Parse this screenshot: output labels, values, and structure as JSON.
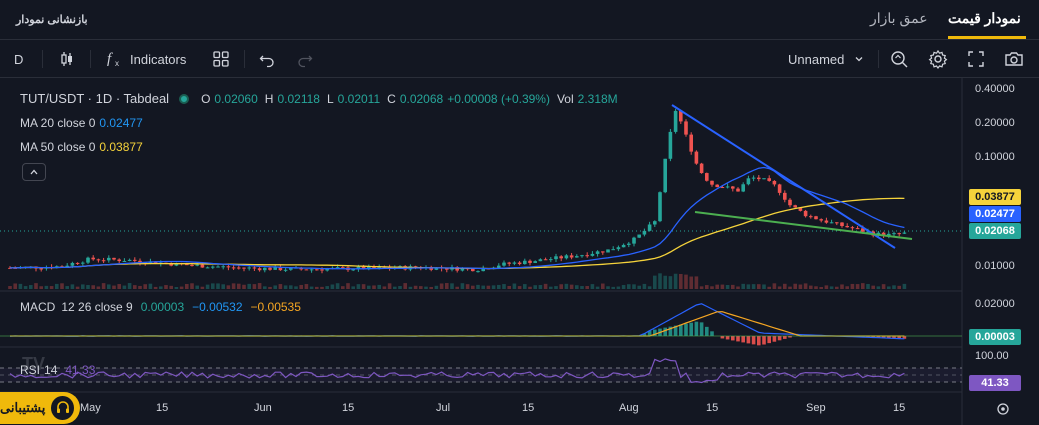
{
  "tabs": {
    "price_chart": "نمودار قیمت",
    "market_depth": "عمق بازار",
    "reset_chart": "بازنشانی نمودار"
  },
  "toolbar": {
    "interval": "D",
    "indicators_label": "Indicators",
    "layout_name": "Unnamed"
  },
  "legend": {
    "symbol": "TUT/USDT · 1D · Tabdeal",
    "open_label": "O",
    "open": "0.02060",
    "high_label": "H",
    "high": "0.02118",
    "low_label": "L",
    "low": "0.02011",
    "close_label": "C",
    "close": "0.02068",
    "change": "+0.00008 (+0.39%)",
    "vol_label": "Vol",
    "vol": "2.318M",
    "ma20_label": "MA 20 close 0",
    "ma20_value": "0.02477",
    "ma50_label": "MA 50 close 0",
    "ma50_value": "0.03877"
  },
  "macd": {
    "label": "MACD",
    "params": "12 26 close 9",
    "hist": "0.00003",
    "macd": "−0.00532",
    "signal": "−0.00535"
  },
  "rsi": {
    "label": "RSI",
    "params": "14",
    "value": "41.33"
  },
  "price_axis": {
    "ticks": [
      "0.40000",
      "0.20000",
      "0.10000",
      "0.01000"
    ],
    "badges": {
      "ma50": "0.03877",
      "ma20": "0.02477",
      "last": "0.02068"
    }
  },
  "macd_axis": {
    "ticks": [
      "0.02000"
    ],
    "badge": "0.00003"
  },
  "rsi_axis": {
    "ticks": [
      "100.00"
    ],
    "badge": "41.33"
  },
  "time_axis": {
    "labels": [
      "May",
      "15",
      "Jun",
      "15",
      "Jul",
      "15",
      "Aug",
      "15",
      "Sep",
      "15"
    ]
  },
  "support": {
    "label": "پشتیبانی"
  },
  "colors": {
    "background": "#131722",
    "up": "#26a69a",
    "down": "#ef5350",
    "ma20": "#2962ff",
    "ma50": "#f5d33b",
    "accent": "#f0b90b",
    "rsi": "#7e57c2"
  },
  "chart_data": {
    "type": "candlestick",
    "title": "TUT/USDT · 1D · Tabdeal",
    "yscale": "log",
    "ylim": [
      0.0075,
      0.42
    ],
    "x_labels": [
      "May",
      "15",
      "Jun",
      "15",
      "Jul",
      "15",
      "Aug",
      "15",
      "Sep",
      "15"
    ],
    "series": [
      {
        "name": "MA 20 close 0",
        "last": 0.02477
      },
      {
        "name": "MA 50 close 0",
        "last": 0.03877
      },
      {
        "name": "Close",
        "last": 0.02068
      }
    ]
  }
}
